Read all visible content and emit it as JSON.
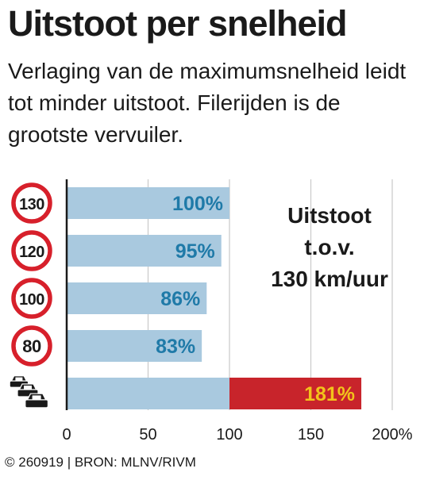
{
  "header": {
    "title": "Uitstoot per snelheid",
    "subtitle": "Verlaging van de maximumsnelheid leidt tot minder uitstoot. Filerijden is de grootste vervuiler."
  },
  "side_label": {
    "line1": "Uitstoot",
    "line2": "t.o.v.",
    "line3": "130 km/uur"
  },
  "credit": "© 260919 | BRON: MLNV/RIVM",
  "chart_data": {
    "type": "bar",
    "orientation": "horizontal",
    "categories": [
      "130",
      "120",
      "100",
      "80",
      "file"
    ],
    "values": [
      100,
      95,
      86,
      83,
      181
    ],
    "labels": [
      "100%",
      "95%",
      "86%",
      "83%",
      "181%"
    ],
    "xlim": [
      0,
      200
    ],
    "xticks": [
      0,
      50,
      100,
      150,
      200
    ],
    "xtick_labels": [
      "0",
      "50",
      "100",
      "150",
      "200%"
    ],
    "grid": true,
    "colors": {
      "bar": "#a9c9df",
      "excess": "#c8242b",
      "label": "#1f7aa8",
      "excess_label": "#f2c31b",
      "sign_ring": "#d7202b",
      "grid": "#c9c9c9",
      "axis": "#1a1a1a"
    },
    "category_icons": [
      "speed-sign-130-icon",
      "speed-sign-120-icon",
      "speed-sign-100-icon",
      "speed-sign-80-icon",
      "traffic-jam-cars-icon"
    ]
  }
}
